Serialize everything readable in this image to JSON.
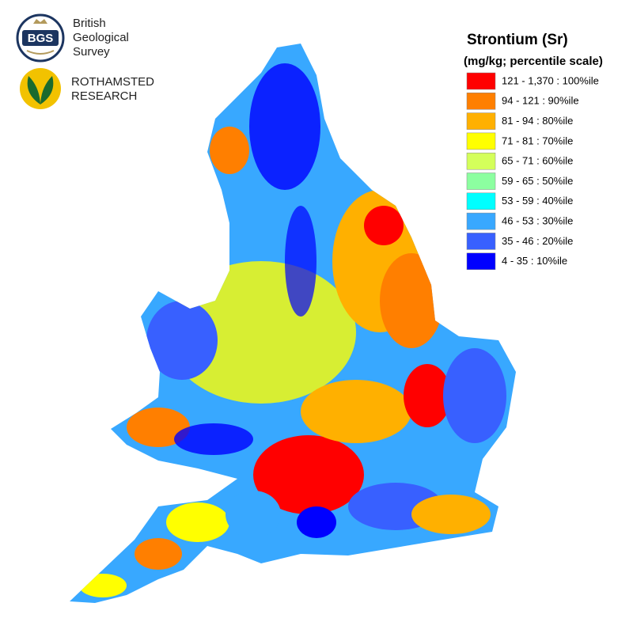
{
  "logos": [
    {
      "abbr": "BGS",
      "lines": [
        "British",
        "Geological",
        "Survey"
      ]
    },
    {
      "lines": [
        "ROTHAMSTED",
        "RESEARCH"
      ]
    }
  ],
  "legend": {
    "title": "Strontium (Sr)",
    "subtitle": "(mg/kg; percentile scale)",
    "items": [
      {
        "label": "121 - 1,370 : 100%ile",
        "color": "#ff0000"
      },
      {
        "label": "94 - 121 : 90%ile",
        "color": "#ff7f00"
      },
      {
        "label": "81 - 94 : 80%ile",
        "color": "#ffb000"
      },
      {
        "label": "71 - 81 : 70%ile",
        "color": "#ffff00"
      },
      {
        "label": "65 - 71 : 60%ile",
        "color": "#d4ff5a"
      },
      {
        "label": "59 - 65 : 50%ile",
        "color": "#8cffa0"
      },
      {
        "label": "53 - 59 : 40%ile",
        "color": "#00ffff"
      },
      {
        "label": "46 - 53 : 30%ile",
        "color": "#38a8ff"
      },
      {
        "label": "35 - 46 : 20%ile",
        "color": "#3860ff"
      },
      {
        "label": "4 - 35 : 10%ile",
        "color": "#0000ff"
      }
    ]
  }
}
